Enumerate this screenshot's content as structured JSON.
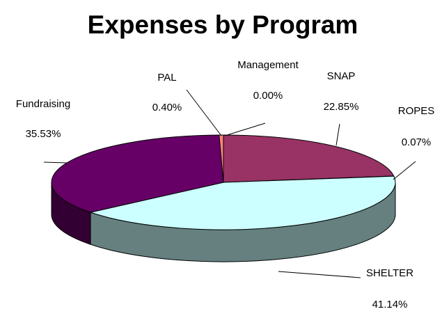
{
  "chart_data": {
    "type": "pie",
    "title": "Expenses by Program",
    "categories": [
      "SNAP",
      "ROPES",
      "SHELTER",
      "Fundraising",
      "PAL",
      "Management"
    ],
    "values": [
      22.85,
      0.07,
      41.14,
      35.53,
      0.4,
      0.0
    ],
    "value_labels": [
      "22.85%",
      "0.07%",
      "41.14%",
      "35.53%",
      "0.40%",
      "0.00%"
    ],
    "colors": [
      "#993366",
      "#ffffcc",
      "#ccffff",
      "#660066",
      "#ff8080",
      "#0066cc"
    ]
  }
}
